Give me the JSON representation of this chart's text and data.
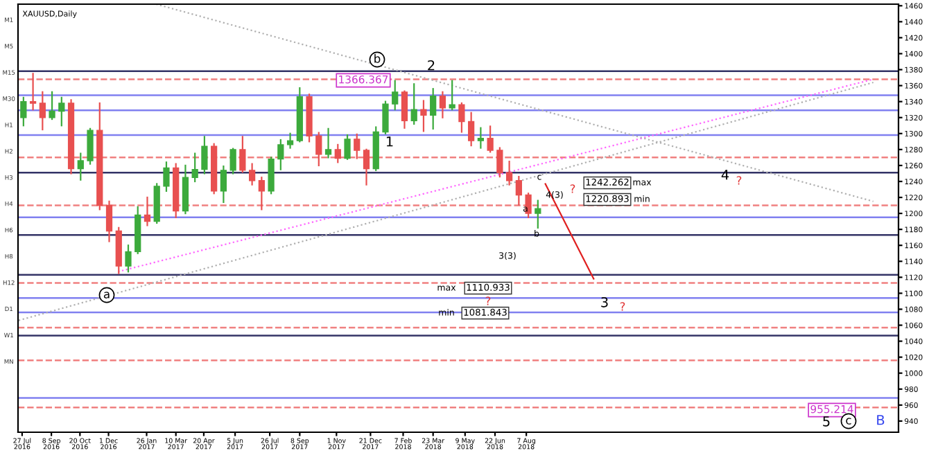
{
  "chart_data": {
    "type": "candlestick",
    "title": "XAUUSD,Daily",
    "x": [
      "2016-07-29",
      "2016-08-12",
      "2016-08-26",
      "2016-09-09",
      "2016-09-23",
      "2016-10-07",
      "2016-10-21",
      "2016-11-04",
      "2016-11-18",
      "2016-12-02",
      "2016-12-16",
      "2016-12-30",
      "2017-01-13",
      "2017-01-27",
      "2017-02-10",
      "2017-02-24",
      "2017-03-10",
      "2017-03-24",
      "2017-04-07",
      "2017-04-21",
      "2017-05-05",
      "2017-05-19",
      "2017-06-02",
      "2017-06-16",
      "2017-06-30",
      "2017-07-14",
      "2017-07-28",
      "2017-08-11",
      "2017-08-25",
      "2017-09-08",
      "2017-09-22",
      "2017-10-06",
      "2017-10-20",
      "2017-11-03",
      "2017-11-17",
      "2017-12-01",
      "2017-12-15",
      "2017-12-29",
      "2018-01-12",
      "2018-01-26",
      "2018-02-09",
      "2018-02-23",
      "2018-03-09",
      "2018-03-23",
      "2018-04-06",
      "2018-04-20",
      "2018-05-04",
      "2018-05-18",
      "2018-06-01",
      "2018-06-15",
      "2018-06-29",
      "2018-07-13",
      "2018-07-27",
      "2018-08-10",
      "2018-08-24"
    ],
    "ohlc": [
      [
        1320,
        1345,
        1310,
        1340
      ],
      [
        1340,
        1375,
        1330,
        1338
      ],
      [
        1338,
        1352,
        1305,
        1320
      ],
      [
        1320,
        1352,
        1318,
        1328
      ],
      [
        1328,
        1345,
        1310,
        1338
      ],
      [
        1338,
        1342,
        1250,
        1256
      ],
      [
        1256,
        1275,
        1242,
        1266
      ],
      [
        1266,
        1306,
        1262,
        1304
      ],
      [
        1304,
        1338,
        1205,
        1210
      ],
      [
        1210,
        1215,
        1165,
        1178
      ],
      [
        1178,
        1182,
        1125,
        1134
      ],
      [
        1134,
        1160,
        1127,
        1152
      ],
      [
        1152,
        1208,
        1150,
        1198
      ],
      [
        1198,
        1220,
        1185,
        1190
      ],
      [
        1190,
        1237,
        1188,
        1234
      ],
      [
        1234,
        1264,
        1228,
        1257
      ],
      [
        1257,
        1262,
        1195,
        1203
      ],
      [
        1203,
        1260,
        1200,
        1245
      ],
      [
        1245,
        1275,
        1240,
        1255
      ],
      [
        1255,
        1296,
        1250,
        1284
      ],
      [
        1284,
        1287,
        1225,
        1228
      ],
      [
        1228,
        1259,
        1214,
        1254
      ],
      [
        1254,
        1281,
        1250,
        1280
      ],
      [
        1280,
        1296,
        1252,
        1254
      ],
      [
        1254,
        1262,
        1236,
        1241
      ],
      [
        1241,
        1245,
        1205,
        1228
      ],
      [
        1228,
        1270,
        1225,
        1268
      ],
      [
        1268,
        1292,
        1255,
        1286
      ],
      [
        1286,
        1300,
        1282,
        1291
      ],
      [
        1291,
        1357,
        1290,
        1346
      ],
      [
        1346,
        1349,
        1290,
        1297
      ],
      [
        1297,
        1301,
        1260,
        1274
      ],
      [
        1274,
        1306,
        1270,
        1280
      ],
      [
        1280,
        1286,
        1264,
        1269
      ],
      [
        1269,
        1298,
        1268,
        1293
      ],
      [
        1293,
        1299,
        1269,
        1279
      ],
      [
        1279,
        1280,
        1236,
        1256
      ],
      [
        1256,
        1308,
        1254,
        1302
      ],
      [
        1302,
        1340,
        1300,
        1337
      ],
      [
        1337,
        1366,
        1330,
        1352
      ],
      [
        1352,
        1353,
        1307,
        1316
      ],
      [
        1316,
        1362,
        1312,
        1330
      ],
      [
        1330,
        1341,
        1303,
        1323
      ],
      [
        1323,
        1356,
        1306,
        1347
      ],
      [
        1347,
        1352,
        1320,
        1332
      ],
      [
        1332,
        1366,
        1330,
        1336
      ],
      [
        1336,
        1338,
        1302,
        1315
      ],
      [
        1315,
        1326,
        1285,
        1291
      ],
      [
        1291,
        1307,
        1282,
        1294
      ],
      [
        1294,
        1309,
        1277,
        1279
      ],
      [
        1279,
        1282,
        1246,
        1251
      ],
      [
        1251,
        1265,
        1236,
        1241
      ],
      [
        1241,
        1246,
        1211,
        1223
      ],
      [
        1223,
        1225,
        1195,
        1200
      ],
      [
        1200,
        1216,
        1182,
        1206
      ]
    ],
    "series": [
      {
        "type": "line",
        "color": "#ff66ff",
        "line_style": "dotted",
        "x": [
          "2016-12-15",
          "2019-12-30"
        ],
        "values": [
          1127,
          1368
        ]
      },
      {
        "type": "line",
        "color": "#b0b0b0",
        "line_style": "dotted",
        "x": [
          "2016-07-22",
          "2019-12-30"
        ],
        "values": [
          1066,
          1364
        ]
      },
      {
        "type": "line",
        "color": "#b0b0b0",
        "line_style": "dotted",
        "x": [
          "2017-02-09",
          "2019-12-30"
        ],
        "values": [
          1462,
          1215
        ]
      },
      {
        "type": "line",
        "color": "#e02020",
        "line_style": "solid",
        "x": [
          "2018-09-04",
          "2018-11-14"
        ],
        "values": [
          1237,
          1118
        ]
      }
    ],
    "ref_lines": [
      {
        "axis": "y",
        "value": 1378,
        "color": "#333366",
        "line_style": "solid"
      },
      {
        "axis": "y",
        "value": 1368,
        "color": "#f08080",
        "line_style": "dashed"
      },
      {
        "axis": "y",
        "value": 1348,
        "color": "#8080f0",
        "line_style": "solid"
      },
      {
        "axis": "y",
        "value": 1329,
        "color": "#8080f0",
        "line_style": "solid"
      },
      {
        "axis": "y",
        "value": 1298,
        "color": "#8080f0",
        "line_style": "solid"
      },
      {
        "axis": "y",
        "value": 1270,
        "color": "#f08080",
        "line_style": "dashed"
      },
      {
        "axis": "y",
        "value": 1251,
        "color": "#333366",
        "line_style": "solid"
      },
      {
        "axis": "y",
        "value": 1210,
        "color": "#f08080",
        "line_style": "dashed"
      },
      {
        "axis": "y",
        "value": 1195,
        "color": "#8080f0",
        "line_style": "solid"
      },
      {
        "axis": "y",
        "value": 1173,
        "color": "#333366",
        "line_style": "solid"
      },
      {
        "axis": "y",
        "value": 1123,
        "color": "#333366",
        "line_style": "solid"
      },
      {
        "axis": "y",
        "value": 1113,
        "color": "#f08080",
        "line_style": "dashed"
      },
      {
        "axis": "y",
        "value": 1094,
        "color": "#8080f0",
        "line_style": "solid"
      },
      {
        "axis": "y",
        "value": 1076,
        "color": "#8080f0",
        "line_style": "solid"
      },
      {
        "axis": "y",
        "value": 1057,
        "color": "#f08080",
        "line_style": "dashed"
      },
      {
        "axis": "y",
        "value": 1047,
        "color": "#333366",
        "line_style": "solid"
      },
      {
        "axis": "y",
        "value": 1016,
        "color": "#f08080",
        "line_style": "dashed"
      },
      {
        "axis": "y",
        "value": 969,
        "color": "#8080f0",
        "line_style": "solid"
      },
      {
        "axis": "y",
        "value": 957,
        "color": "#f08080",
        "line_style": "dashed"
      }
    ],
    "xlim": [
      "2016-07-21",
      "2020-02-05"
    ],
    "xticks": [
      {
        "value": "2016-07-27",
        "label": "27 Jul 2016"
      },
      {
        "value": "2016-09-08",
        "label": "8 Sep 2016"
      },
      {
        "value": "2016-10-20",
        "label": "20 Oct 2016"
      },
      {
        "value": "2016-12-01",
        "label": "1 Dec 2016"
      },
      {
        "value": "2017-01-26",
        "label": "26 Jan 2017"
      },
      {
        "value": "2017-03-10",
        "label": "10 Mar 2017"
      },
      {
        "value": "2017-04-20",
        "label": "20 Apr 2017"
      },
      {
        "value": "2017-06-05",
        "label": "5 Jun 2017"
      },
      {
        "value": "2017-07-26",
        "label": "26 Jul 2017"
      },
      {
        "value": "2017-09-08",
        "label": "8 Sep 2017"
      },
      {
        "value": "2017-11-01",
        "label": "1 Nov 2017"
      },
      {
        "value": "2017-12-21",
        "label": "21 Dec 2017"
      },
      {
        "value": "2018-02-07",
        "label": "7 Feb 2018"
      },
      {
        "value": "2018-03-23",
        "label": "23 Mar 2018"
      },
      {
        "value": "2018-05-09",
        "label": "9 May 2018"
      },
      {
        "value": "2018-06-22",
        "label": "22 Jun 2018"
      },
      {
        "value": "2018-08-07",
        "label": "7 Aug 2018"
      }
    ],
    "ylim": [
      926,
      1462
    ],
    "yticks": [
      940,
      960,
      980,
      1000,
      1020,
      1040,
      1060,
      1080,
      1100,
      1120,
      1140,
      1160,
      1180,
      1200,
      1220,
      1240,
      1260,
      1280,
      1300,
      1320,
      1340,
      1360,
      1380,
      1400,
      1420,
      1440,
      1460
    ],
    "annotations": [
      "b",
      "2",
      "1",
      "a",
      "1366.367",
      "c",
      "4(3)",
      "?",
      "1242.262",
      "max",
      "1220.893",
      "min",
      "a",
      "b",
      "3(3)",
      "max",
      "1110.933",
      "?",
      "min",
      "1081.843",
      "3",
      "?",
      "4",
      "?",
      "955.214",
      "5",
      "c",
      "B",
      "M1",
      "M5",
      "M15",
      "M30",
      "H1",
      "H2",
      "H3",
      "H4",
      "H6",
      "H8",
      "H12",
      "D1",
      "W1",
      "MN"
    ]
  }
}
